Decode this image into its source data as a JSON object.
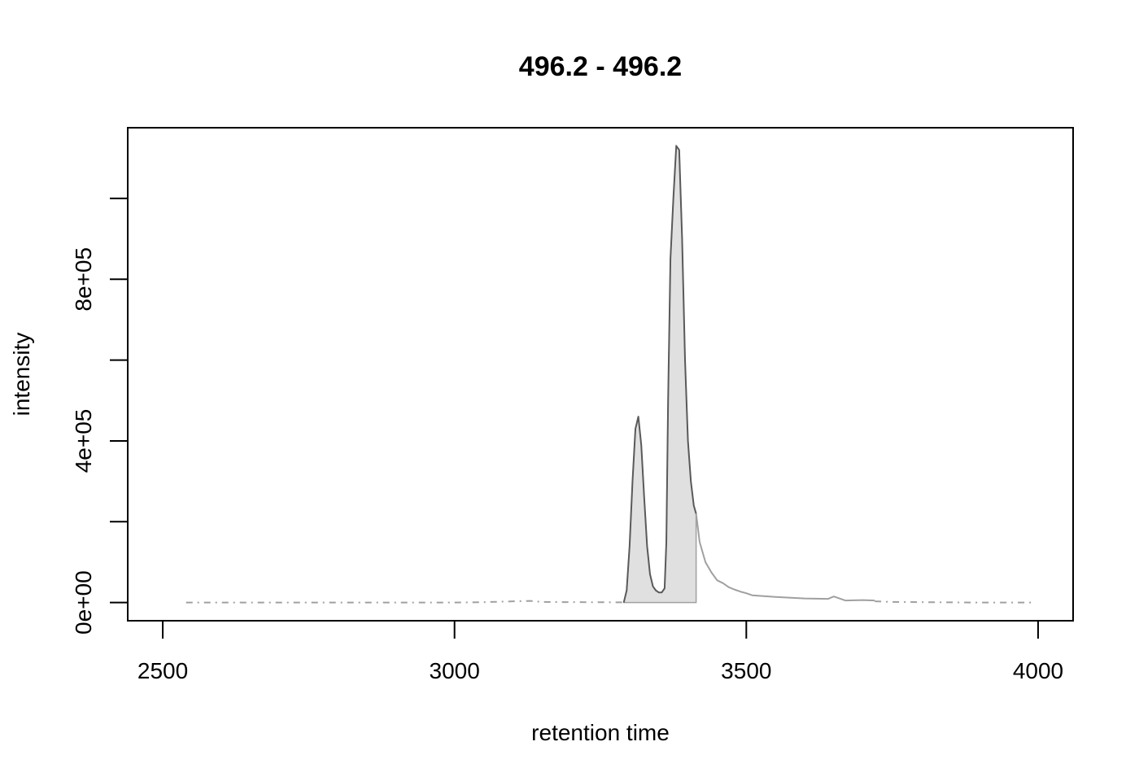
{
  "chart_data": {
    "type": "line",
    "title": "496.2 - 496.2",
    "xlabel": "retention time",
    "ylabel": "intensity",
    "xlim": [
      2440,
      4060
    ],
    "ylim": [
      -45000,
      1175000
    ],
    "x_ticks": [
      2500,
      3000,
      3500,
      4000
    ],
    "x_tick_labels": [
      "2500",
      "3000",
      "3500",
      "4000"
    ],
    "y_ticks": [
      0,
      200000,
      400000,
      600000,
      800000,
      1000000
    ],
    "y_tick_labels": [
      "0e+00",
      "",
      "4e+05",
      "",
      "8e+05",
      ""
    ],
    "colors": {
      "peak_line": "#5a5a5a",
      "background_line": "#a0a0a0",
      "fill": "#e0e0e0",
      "frame": "#000000"
    },
    "series": [
      {
        "role": "background-trace",
        "style": "dashed",
        "x": [
          2540,
          2600,
          2700,
          2800,
          2900,
          3000,
          3050,
          3100,
          3130,
          3150,
          3200,
          3250,
          3290
        ],
        "y": [
          0,
          0,
          0,
          0,
          0,
          0,
          1000,
          3000,
          4000,
          1500,
          1000,
          800,
          500
        ]
      },
      {
        "role": "detected-peak",
        "style": "solid",
        "x": [
          3290,
          3295,
          3300,
          3305,
          3310,
          3315,
          3320,
          3325,
          3330,
          3335,
          3340,
          3345,
          3350,
          3355,
          3360,
          3363,
          3366,
          3370,
          3375,
          3380,
          3385,
          3390,
          3395,
          3400,
          3405,
          3410,
          3414
        ],
        "y": [
          0,
          30000,
          140000,
          300000,
          430000,
          460000,
          390000,
          260000,
          140000,
          70000,
          40000,
          30000,
          25000,
          25000,
          35000,
          150000,
          500000,
          850000,
          1000000,
          1130000,
          1120000,
          900000,
          600000,
          400000,
          300000,
          240000,
          220000
        ]
      },
      {
        "role": "tail-trace",
        "style": "solid",
        "x": [
          3414,
          3420,
          3430,
          3440,
          3450,
          3460,
          3470,
          3480,
          3490,
          3500,
          3510,
          3530,
          3550,
          3600,
          3640,
          3650,
          3670,
          3700,
          3720
        ],
        "y": [
          220000,
          150000,
          100000,
          75000,
          55000,
          48000,
          38000,
          32000,
          27000,
          23000,
          18000,
          16000,
          14000,
          10000,
          9000,
          15000,
          5000,
          6000,
          5000
        ]
      },
      {
        "role": "background-trace",
        "style": "dashed",
        "x": [
          3720,
          3750,
          3800,
          3850,
          3900,
          3950,
          3990
        ],
        "y": [
          3000,
          1500,
          1000,
          500,
          0,
          0,
          0
        ]
      }
    ],
    "shaded_region": {
      "x_start": 3290,
      "x_end": 3414
    }
  }
}
